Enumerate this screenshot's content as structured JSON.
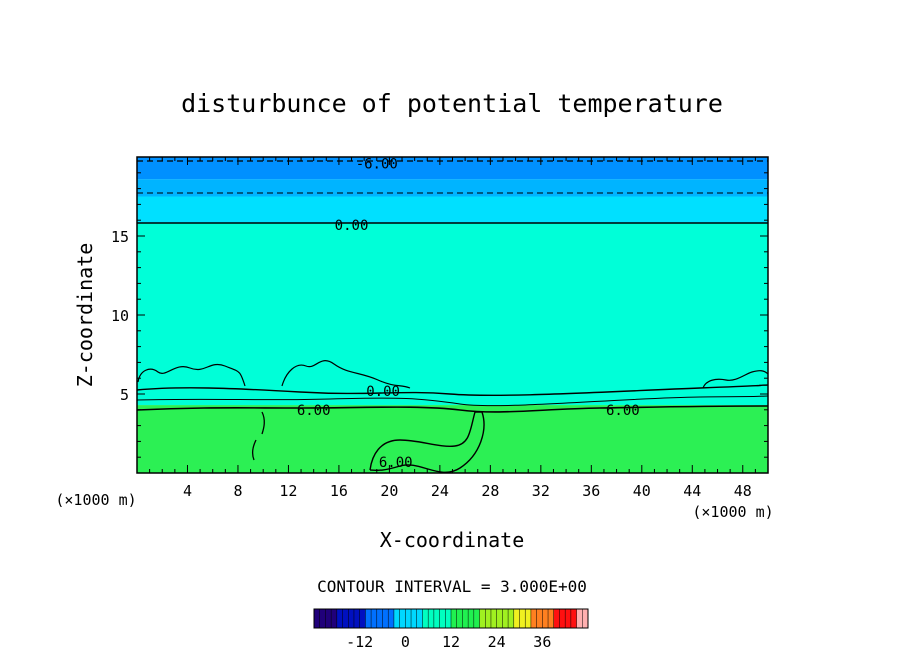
{
  "chart_data": {
    "type": "heatmap",
    "title": "disturbunce of potential temperature",
    "xlabel": "X-coordinate",
    "ylabel": "Z-coordinate",
    "x_unit": "(×1000 m)",
    "xlim": [
      0,
      50
    ],
    "ylim": [
      0,
      20
    ],
    "x_ticks": [
      4,
      8,
      12,
      16,
      20,
      24,
      28,
      32,
      36,
      40,
      44,
      48
    ],
    "y_ticks": [
      5,
      10,
      15
    ],
    "bands": [
      {
        "z_from": 0,
        "z_to": 4.3,
        "color": "#2cf054"
      },
      {
        "z_from": 4.3,
        "z_to": 15.8,
        "color": "#00ffd8"
      },
      {
        "z_from": 15.8,
        "z_to": 17.5,
        "color": "#00e0ff"
      },
      {
        "z_from": 17.5,
        "z_to": 18.6,
        "color": "#00b4ff"
      },
      {
        "z_from": 18.6,
        "z_to": 20,
        "color": "#0090ff"
      }
    ],
    "contour_labels": [
      {
        "text": "-6.00",
        "x": 19,
        "z": 19.6
      },
      {
        "text": "0.00",
        "x": 17,
        "z": 15.7
      },
      {
        "text": "0.00",
        "x": 19.5,
        "z": 5.2
      },
      {
        "text": "6.00",
        "x": 14,
        "z": 4.0
      },
      {
        "text": "6.00",
        "x": 38.5,
        "z": 4.0
      },
      {
        "text": "6.00",
        "x": 20.5,
        "z": 0.7
      }
    ],
    "contour_interval_label": "CONTOUR INTERVAL = 3.000E+00",
    "colorbar": {
      "range": [
        -24,
        48
      ],
      "ticks": [
        -12,
        0,
        12,
        24,
        36
      ]
    }
  }
}
